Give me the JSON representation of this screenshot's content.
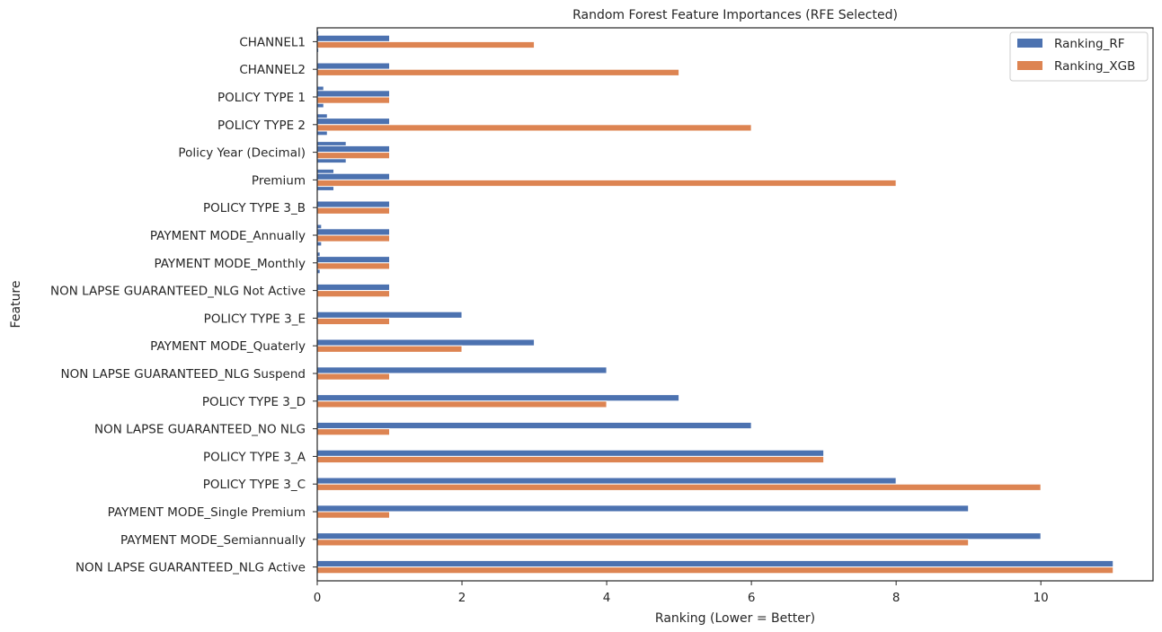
{
  "chart_data": {
    "type": "bar",
    "orientation": "horizontal",
    "title": "Random Forest Feature Importances (RFE Selected)",
    "xlabel": "Ranking (Lower = Better)",
    "ylabel": "Feature",
    "xlim": [
      0,
      11.55
    ],
    "xticks": [
      0,
      2,
      4,
      6,
      8,
      10
    ],
    "grid": false,
    "legend_position": "top-right",
    "categories": [
      "CHANNEL1",
      "CHANNEL2",
      "POLICY TYPE 1",
      "POLICY TYPE 2",
      "Policy Year (Decimal)",
      "Premium",
      "POLICY TYPE 3_B",
      "PAYMENT MODE_Annually",
      "PAYMENT MODE_Monthly",
      "NON LAPSE GUARANTEED_NLG Not Active",
      "POLICY TYPE 3_E",
      "PAYMENT MODE_Quaterly",
      "NON LAPSE GUARANTEED_NLG Suspend",
      "POLICY TYPE 3_D",
      "NON LAPSE GUARANTEED_NO NLG",
      "POLICY TYPE 3_A",
      "POLICY TYPE 3_C",
      "PAYMENT MODE_Single Premium",
      "PAYMENT MODE_Semiannually",
      "NON LAPSE GUARANTEED_NLG Active"
    ],
    "series": [
      {
        "name": "Ranking_RF",
        "color": "#4c72b0",
        "values": [
          1,
          1,
          1,
          1,
          1,
          1,
          1,
          1,
          1,
          1,
          2,
          3,
          4,
          5,
          6,
          7,
          8,
          9,
          10,
          11
        ]
      },
      {
        "name": "Ranking_XGB",
        "color": "#dd8452",
        "values": [
          3,
          5,
          1,
          6,
          1,
          8,
          1,
          1,
          1,
          1,
          1,
          2,
          1,
          4,
          1,
          7,
          10,
          1,
          9,
          11
        ]
      }
    ],
    "importance_overlay": {
      "color": "#4c72b0",
      "values": [
        0.02,
        0.01,
        0.09,
        0.14,
        0.4,
        0.23,
        0.01,
        0.06,
        0.04,
        0.01,
        0,
        0,
        0,
        0,
        0,
        0,
        0,
        0,
        0,
        0
      ]
    }
  }
}
